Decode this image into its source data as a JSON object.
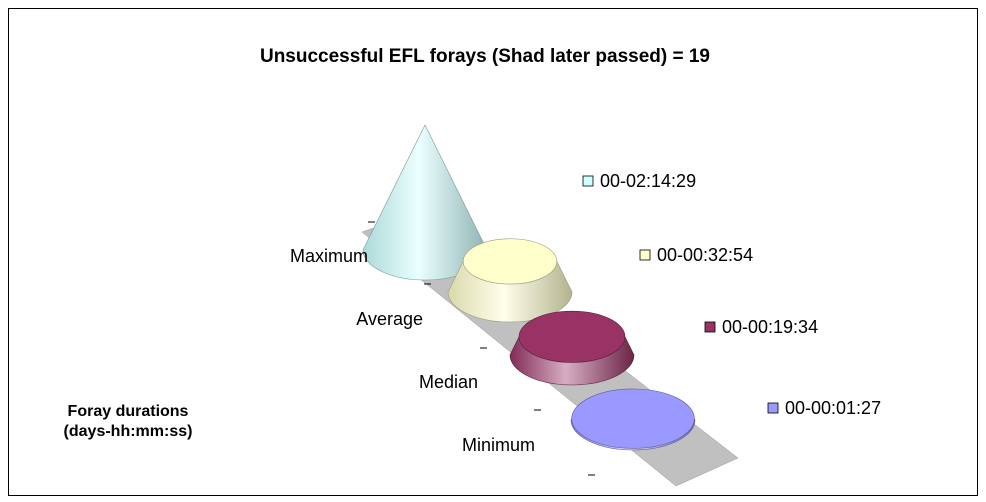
{
  "chart_data": {
    "type": "cone3d",
    "title": "Unsuccessful EFL forays (Shad later passed) = 19",
    "axis_label": "Foray durations (days-hh:mm:ss)",
    "categories": [
      "Maximum",
      "Average",
      "Median",
      "Minimum"
    ],
    "values": [
      8069,
      1974,
      1174,
      87
    ],
    "value_labels": [
      "00-02:14:29",
      "00-00:32:54",
      "00-00:19:34",
      "00-00:01:27"
    ],
    "colors": [
      "#ccffff",
      "#ffffcc",
      "#993366",
      "#9999ff"
    ]
  }
}
